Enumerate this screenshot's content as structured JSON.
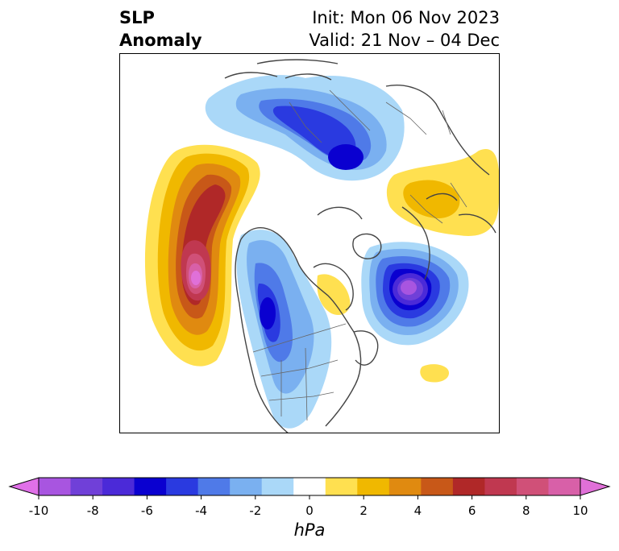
{
  "title": {
    "left_line1": "SLP",
    "left_line2": "Anomaly",
    "right_line1": "Init: Mon 06 Nov 2023",
    "right_line2": "Valid: 21 Nov – 04 Dec"
  },
  "colorbar": {
    "units": "hPa",
    "ticks": [
      "-10",
      "-8",
      "-6",
      "-4",
      "-2",
      "0",
      "2",
      "4",
      "6",
      "8",
      "10"
    ],
    "colors": [
      "#e070e8",
      "#a855e0",
      "#7040d8",
      "#4b2ad8",
      "#0a00d0",
      "#2a3ae0",
      "#4f7ae8",
      "#7ab0f0",
      "#aad8f8",
      "#ffffff",
      "#ffe050",
      "#f0b800",
      "#e08a10",
      "#c85818",
      "#b02828",
      "#c03850",
      "#d05078",
      "#d860a8",
      "#e070d8"
    ]
  },
  "map": {
    "projection": "North polar stereographic",
    "features": [
      {
        "name": "positive-anomaly-north-pacific",
        "sign": "positive",
        "peak_hpa": 10
      },
      {
        "name": "negative-anomaly-north-atlantic",
        "sign": "negative",
        "peak_hpa": -9
      },
      {
        "name": "negative-anomaly-western-north-america",
        "sign": "negative",
        "peak_hpa": -6
      },
      {
        "name": "negative-anomaly-arctic-siberia",
        "sign": "negative",
        "peak_hpa": -6
      },
      {
        "name": "positive-anomaly-east-asia",
        "sign": "positive",
        "peak_hpa": 3
      },
      {
        "name": "positive-anomaly-hudson-bay",
        "sign": "positive",
        "peak_hpa": 2
      }
    ]
  }
}
